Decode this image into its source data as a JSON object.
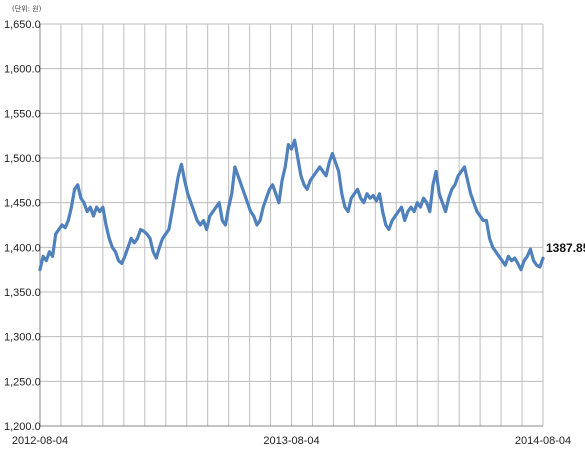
{
  "chart_data": {
    "type": "line",
    "unit_label": "(단위: 원)",
    "xlabel": "",
    "ylabel": "",
    "ylim": [
      1200,
      1650
    ],
    "yticks": [
      1200,
      1250,
      1300,
      1350,
      1400,
      1450,
      1500,
      1550,
      1600,
      1650
    ],
    "ytick_labels": [
      "1,200.0",
      "1,250.0",
      "1,300.0",
      "1,350.0",
      "1,400.0",
      "1,450.0",
      "1,500.0",
      "1,550.0",
      "1,600.0",
      "1,650.0"
    ],
    "xtick_labels": [
      "2012-08-04",
      "2013-08-04",
      "2014-08-04"
    ],
    "grid": true,
    "series_color": "#4F81BD",
    "last_value_label": "1387.85",
    "series": [
      {
        "values": [
          1375,
          1390,
          1385,
          1395,
          1390,
          1415,
          1420,
          1425,
          1422,
          1430,
          1445,
          1465,
          1470,
          1455,
          1450,
          1440,
          1445,
          1435,
          1445,
          1440,
          1445,
          1425,
          1410,
          1400,
          1395,
          1385,
          1382,
          1390,
          1400,
          1410,
          1405,
          1410,
          1420,
          1418,
          1415,
          1410,
          1395,
          1388,
          1400,
          1410,
          1415,
          1420,
          1440,
          1460,
          1480,
          1493,
          1475,
          1460,
          1450,
          1440,
          1430,
          1425,
          1430,
          1420,
          1435,
          1440,
          1445,
          1450,
          1430,
          1425,
          1445,
          1460,
          1490,
          1480,
          1470,
          1460,
          1450,
          1440,
          1435,
          1425,
          1430,
          1445,
          1455,
          1465,
          1470,
          1460,
          1450,
          1475,
          1490,
          1515,
          1510,
          1520,
          1500,
          1480,
          1470,
          1465,
          1475,
          1480,
          1485,
          1490,
          1485,
          1480,
          1495,
          1505,
          1495,
          1485,
          1460,
          1445,
          1440,
          1455,
          1460,
          1465,
          1455,
          1450,
          1460,
          1455,
          1458,
          1452,
          1460,
          1440,
          1425,
          1420,
          1430,
          1435,
          1440,
          1445,
          1430,
          1440,
          1445,
          1440,
          1450,
          1445,
          1455,
          1450,
          1440,
          1470,
          1485,
          1460,
          1450,
          1440,
          1455,
          1465,
          1470,
          1480,
          1485,
          1490,
          1475,
          1460,
          1450,
          1440,
          1435,
          1430,
          1430,
          1410,
          1400,
          1395,
          1390,
          1385,
          1380,
          1390,
          1385,
          1388,
          1382,
          1375,
          1385,
          1390,
          1398,
          1385,
          1380,
          1378,
          1387.85
        ]
      }
    ]
  }
}
